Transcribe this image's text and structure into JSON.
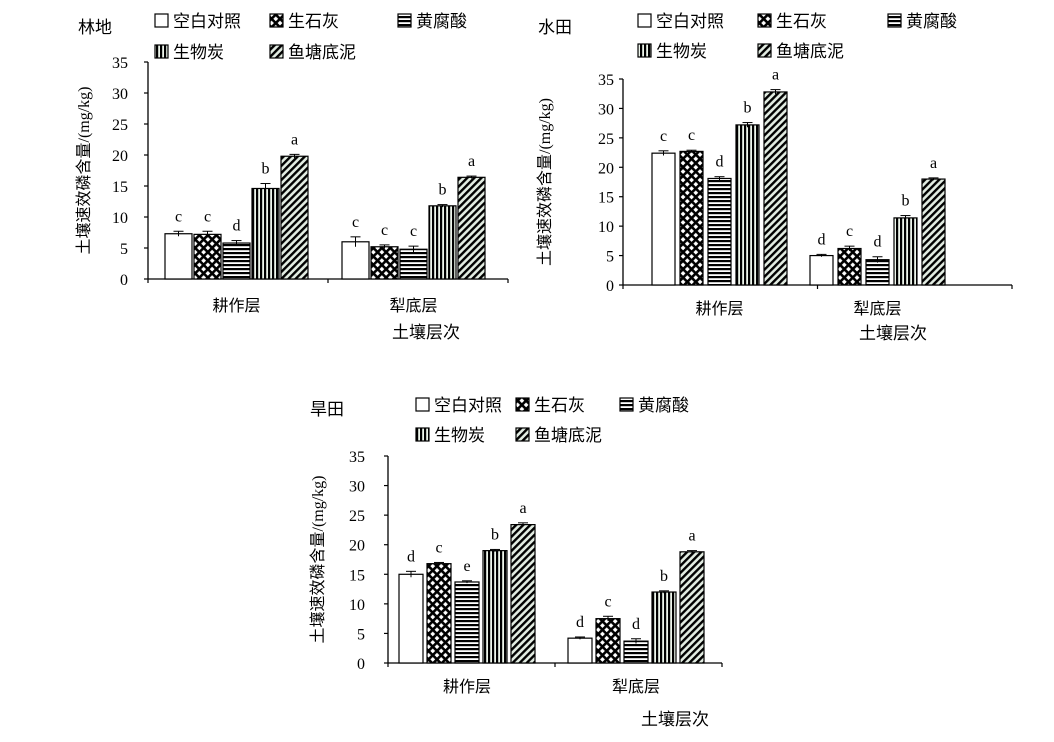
{
  "chart_data": [
    {
      "type": "bar",
      "title": "林地",
      "xlabel": "土壤层次",
      "ylabel": "土壤速效磷含量/(mg/kg)",
      "ylim": [
        0,
        35
      ],
      "yticks": [
        "0",
        "5",
        "10",
        "15",
        "20",
        "25",
        "30",
        "35"
      ],
      "categories": [
        "耕作层",
        "犁底层"
      ],
      "series": [
        {
          "name": "空白对照",
          "values": [
            7.3,
            6.0
          ],
          "errors": [
            0.4,
            0.8
          ],
          "letters": [
            "c",
            "c"
          ]
        },
        {
          "name": "生石灰",
          "values": [
            7.2,
            5.2
          ],
          "errors": [
            0.5,
            0.3
          ],
          "letters": [
            "c",
            "c"
          ]
        },
        {
          "name": "黄腐酸",
          "values": [
            5.8,
            4.8
          ],
          "errors": [
            0.4,
            0.5
          ],
          "letters": [
            "d",
            "c"
          ]
        },
        {
          "name": "生物炭",
          "values": [
            14.6,
            11.8
          ],
          "errors": [
            0.8,
            0.2
          ],
          "letters": [
            "b",
            "b"
          ]
        },
        {
          "name": "鱼塘底泥",
          "values": [
            19.8,
            16.4
          ],
          "errors": [
            0.3,
            0.2
          ],
          "letters": [
            "a",
            "a"
          ]
        }
      ],
      "legend": "top"
    },
    {
      "type": "bar",
      "title": "水田",
      "xlabel": "土壤层次",
      "ylabel": "土壤速效磷含量/(mg/kg)",
      "ylim": [
        0,
        35
      ],
      "yticks": [
        "0",
        "5",
        "10",
        "15",
        "20",
        "25",
        "30",
        "35"
      ],
      "categories": [
        "耕作层",
        "犁底层"
      ],
      "series": [
        {
          "name": "空白对照",
          "values": [
            22.4,
            5.0
          ],
          "errors": [
            0.4,
            0.2
          ],
          "letters": [
            "c",
            "d"
          ]
        },
        {
          "name": "生石灰",
          "values": [
            22.7,
            6.2
          ],
          "errors": [
            0.2,
            0.4
          ],
          "letters": [
            "c",
            "c"
          ]
        },
        {
          "name": "黄腐酸",
          "values": [
            18.1,
            4.3
          ],
          "errors": [
            0.3,
            0.5
          ],
          "letters": [
            "d",
            "d"
          ]
        },
        {
          "name": "生物炭",
          "values": [
            27.2,
            11.4
          ],
          "errors": [
            0.4,
            0.4
          ],
          "letters": [
            "b",
            "b"
          ]
        },
        {
          "name": "鱼塘底泥",
          "values": [
            32.8,
            18.0
          ],
          "errors": [
            0.4,
            0.2
          ],
          "letters": [
            "a",
            "a"
          ]
        }
      ],
      "legend": "top"
    },
    {
      "type": "bar",
      "title": "旱田",
      "xlabel": "土壤层次",
      "ylabel": "土壤速效磷含量/(mg/kg)",
      "ylim": [
        0,
        35
      ],
      "yticks": [
        "0",
        "5",
        "10",
        "15",
        "20",
        "25",
        "30",
        "35"
      ],
      "categories": [
        "耕作层",
        "犁底层"
      ],
      "series": [
        {
          "name": "空白对照",
          "values": [
            15.0,
            4.2
          ],
          "errors": [
            0.5,
            0.2
          ],
          "letters": [
            "d",
            "d"
          ]
        },
        {
          "name": "生石灰",
          "values": [
            16.8,
            7.5
          ],
          "errors": [
            0.2,
            0.4
          ],
          "letters": [
            "c",
            "c"
          ]
        },
        {
          "name": "黄腐酸",
          "values": [
            13.7,
            3.7
          ],
          "errors": [
            0.2,
            0.4
          ],
          "letters": [
            "e",
            "d"
          ]
        },
        {
          "name": "生物炭",
          "values": [
            19.0,
            12.0
          ],
          "errors": [
            0.2,
            0.2
          ],
          "letters": [
            "b",
            "b"
          ]
        },
        {
          "name": "鱼塘底泥",
          "values": [
            23.4,
            18.8
          ],
          "errors": [
            0.3,
            0.2
          ],
          "letters": [
            "a",
            "a"
          ]
        }
      ],
      "legend": "top"
    }
  ]
}
